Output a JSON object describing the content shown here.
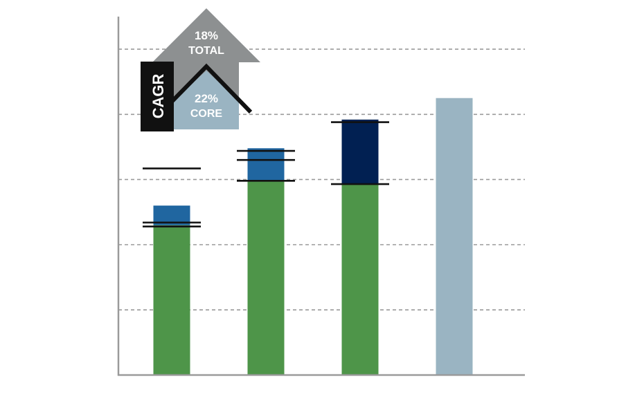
{
  "chart_data": {
    "type": "bar",
    "stacked": true,
    "title": "",
    "xlabel": "",
    "ylabel": "",
    "categories": [
      "",
      "",
      "",
      ""
    ],
    "ylim": [
      0,
      5.5
    ],
    "gridlines": [
      1,
      2,
      3,
      4,
      5
    ],
    "grid": "dashed horizontal",
    "series": [
      {
        "color": "#4e9549",
        "values": [
          2.3,
          2.98,
          2.93,
          0
        ]
      },
      {
        "color": "#2066a0",
        "values": [
          0.3,
          0.5,
          0.0,
          0
        ]
      },
      {
        "color": "#012052",
        "values": [
          0,
          0,
          0.99,
          0
        ]
      },
      {
        "color": "#9ab4c2",
        "values": [
          0,
          0,
          0,
          4.25
        ]
      }
    ],
    "bracket_lines": [
      [
        3.17,
        2.34,
        2.28
      ],
      [
        3.44,
        3.3,
        2.98
      ],
      [
        3.88,
        2.93
      ]
    ]
  },
  "badge": {
    "cagr_label": "CAGR",
    "total_pct": "18%",
    "total_label": "TOTAL",
    "core_pct": "22%",
    "core_label": "CORE",
    "total_color": "#8d9091",
    "core_color": "#9ab4c2",
    "cagr_color": "#111111"
  }
}
